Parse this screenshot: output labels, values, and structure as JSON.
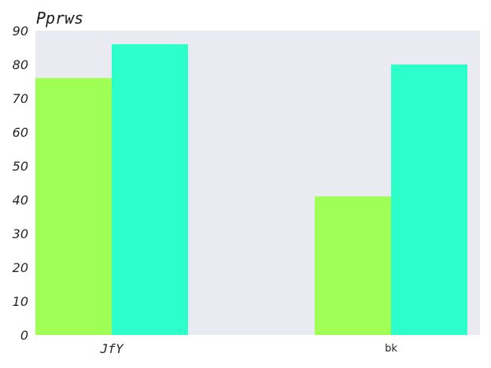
{
  "chart_data": {
    "type": "bar",
    "title": "Pprws",
    "xlabel": "",
    "ylabel": "",
    "categories": [
      "JfY",
      "bk"
    ],
    "series": [
      {
        "values": [
          76,
          41
        ],
        "color": "#a0ff55"
      },
      {
        "values": [
          86,
          80
        ],
        "color": "#2dffca"
      }
    ],
    "ylim": [
      0,
      90
    ],
    "yticks": [
      "0",
      "10",
      "20",
      "30",
      "40",
      "50",
      "60",
      "70",
      "80",
      "90"
    ],
    "grid": false,
    "legend": "none",
    "plot_background": "#eaeaf2"
  }
}
